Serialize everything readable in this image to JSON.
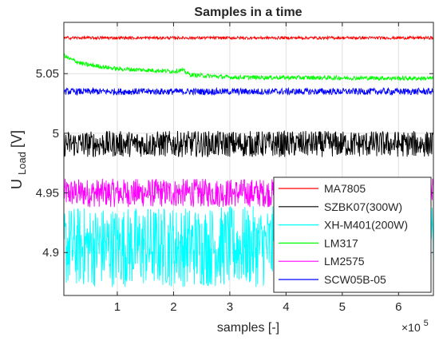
{
  "chart_data": {
    "type": "line",
    "title": "Samples in a time",
    "xlabel": "samples [-]",
    "x_exponent_base": "×10",
    "x_exponent_power": "5",
    "ylabel_main": "U",
    "ylabel_sub": "Load",
    "ylabel_unit": " [V]",
    "xlim": [
      0.05,
      6.62
    ],
    "ylim": [
      4.864,
      5.093
    ],
    "xticks": [
      1,
      2,
      3,
      4,
      5,
      6
    ],
    "xtick_labels": [
      "1",
      "2",
      "3",
      "4",
      "5",
      "6"
    ],
    "yticks": [
      4.9,
      4.95,
      5,
      5.05
    ],
    "ytick_labels": [
      "4.9",
      "4.95",
      "5",
      "5.05"
    ],
    "grid": true,
    "legend_position": "bottom-right",
    "series": [
      {
        "name": "MA7805",
        "color": "#ff0000",
        "center": [
          [
            0.05,
            5.08
          ],
          [
            6.62,
            5.08
          ]
        ],
        "noise": 0.0012
      },
      {
        "name": "SZBK07(300W)",
        "color": "#000000",
        "center": [
          [
            0.05,
            4.991
          ],
          [
            6.62,
            4.991
          ]
        ],
        "noise": 0.011
      },
      {
        "name": "XH-M401(200W)",
        "color": "#00ffff",
        "center": [
          [
            0.05,
            4.905
          ],
          [
            6.62,
            4.905
          ]
        ],
        "noise": 0.034
      },
      {
        "name": "LM317",
        "color": "#00ff00",
        "center": [
          [
            0.05,
            5.066
          ],
          [
            0.12,
            5.063
          ],
          [
            0.4,
            5.058
          ],
          [
            1.0,
            5.054
          ],
          [
            2.0,
            5.052
          ],
          [
            2.15,
            5.053
          ],
          [
            2.3,
            5.049
          ],
          [
            3.0,
            5.047
          ],
          [
            6.62,
            5.046
          ]
        ],
        "noise": 0.0018
      },
      {
        "name": "LM2575",
        "color": "#ff00ff",
        "center": [
          [
            0.05,
            4.95
          ],
          [
            6.62,
            4.95
          ]
        ],
        "noise": 0.012
      },
      {
        "name": "SCW05B-05",
        "color": "#0000ff",
        "center": [
          [
            0.05,
            5.035
          ],
          [
            6.62,
            5.035
          ]
        ],
        "noise": 0.0028
      }
    ]
  }
}
